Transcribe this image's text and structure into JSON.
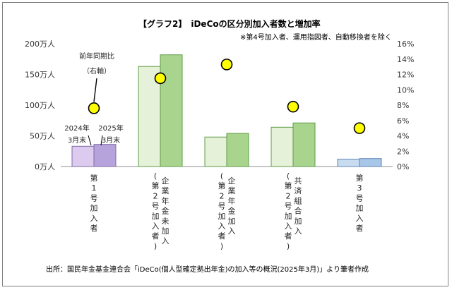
{
  "chart_data": {
    "type": "bar",
    "title": "【グラフ2】　iDeCoの区分別加入者数と増加率",
    "subtitle": "※第4号加入者、運用指図者、自動移換者を除く",
    "categories": [
      "第１号加入者",
      "企業年金未加入（第２号加入者）",
      "企業年金加入（第２号加入者）",
      "共済組合加入（第２号加入者）",
      "第３号加入者"
    ],
    "category_labels": [
      [
        "第",
        "1",
        "号",
        "加",
        "入",
        "者"
      ],
      [
        "企",
        "業",
        "年",
        "金",
        "未",
        "加",
        "入"
      ],
      [
        "企",
        "業",
        "年",
        "金",
        "加",
        "入"
      ],
      [
        "共",
        "済",
        "組",
        "合",
        "加",
        "入"
      ],
      [
        "第",
        "3",
        "号",
        "加",
        "入",
        "者"
      ]
    ],
    "sub_labels": [
      [],
      [
        "(",
        "第",
        "2",
        "号",
        "加",
        "入",
        "者",
        ")"
      ],
      [
        "(",
        "第",
        "2",
        "号",
        "加",
        "入",
        "者",
        ")"
      ],
      [
        "(",
        "第",
        "2",
        "号",
        "加",
        "入",
        "者",
        ")"
      ],
      []
    ],
    "series": [
      {
        "name": "2024年3月末",
        "label_lines": [
          "2024年",
          "3月末"
        ],
        "color": "#d9c3ea",
        "values": [
          33,
          163,
          48,
          64,
          12
        ]
      },
      {
        "name": "2025年3月末",
        "label_lines": [
          "2025年",
          "3月末"
        ],
        "color": "#b8a2da",
        "values": [
          36,
          182,
          54,
          71,
          13
        ]
      }
    ],
    "category_colors": [
      [
        "#dccbee",
        "#b7a3dc"
      ],
      [
        "#e6f1da",
        "#a8d48e"
      ],
      [
        "#e6f1da",
        "#a8d48e"
      ],
      [
        "#e6f1da",
        "#a8d48e"
      ],
      [
        "#c8dcef",
        "#a7c7e8"
      ]
    ],
    "growth_rate": {
      "name": "前年同期比（右軸）",
      "label_lines": [
        "前年同期比",
        "（右軸）"
      ],
      "values": [
        7.6,
        11.5,
        13.3,
        7.8,
        5.0
      ],
      "color": "#ffff00"
    },
    "y_left": {
      "ticks": [
        0,
        50,
        100,
        150,
        200
      ],
      "tick_labels": [
        "0万人",
        "50万人",
        "100万人",
        "150万人",
        "200万人"
      ],
      "min": 0,
      "max": 200
    },
    "y_right": {
      "ticks": [
        0,
        2,
        4,
        6,
        8,
        10,
        12,
        14,
        16
      ],
      "tick_labels": [
        "0%",
        "2%",
        "4%",
        "6%",
        "8%",
        "10%",
        "12%",
        "14%",
        "16%"
      ],
      "min": 0,
      "max": 16
    },
    "grid": false
  },
  "source_note": "出所：国民年金基金連合会「iDeCo(個人型確定拠出年金)の加入等の概況(2025年3月)」より筆者作成"
}
